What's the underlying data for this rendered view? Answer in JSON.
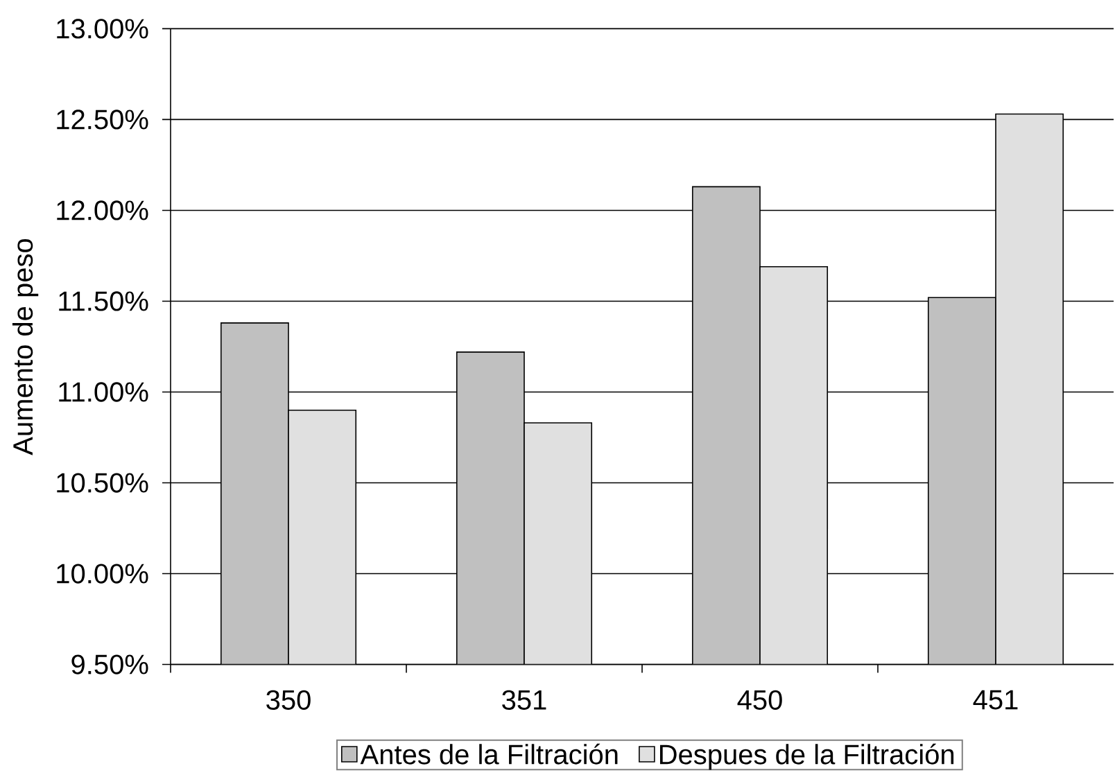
{
  "chart_data": {
    "type": "bar",
    "categories": [
      "350",
      "351",
      "450",
      "451"
    ],
    "ylabel": "Aumento de peso",
    "series": [
      {
        "name": "Antes de la Filtración",
        "color": "#c0c0c0",
        "values": [
          11.38,
          11.22,
          12.13,
          11.52
        ]
      },
      {
        "name": "Despues de la Filtración",
        "color": "#e0e0e0",
        "values": [
          10.9,
          10.83,
          11.69,
          12.53
        ]
      }
    ],
    "ylim": [
      9.5,
      13.0
    ],
    "yticks": [
      {
        "value": 9.5,
        "label": "9.50%"
      },
      {
        "value": 10.0,
        "label": "10.00%"
      },
      {
        "value": 10.5,
        "label": "10.50%"
      },
      {
        "value": 11.0,
        "label": "11.00%"
      },
      {
        "value": 11.5,
        "label": "11.50%"
      },
      {
        "value": 12.0,
        "label": "12.00%"
      },
      {
        "value": 12.5,
        "label": "12.50%"
      },
      {
        "value": 13.0,
        "label": "13.00%"
      }
    ],
    "grid": "y",
    "legend": "bottom"
  }
}
